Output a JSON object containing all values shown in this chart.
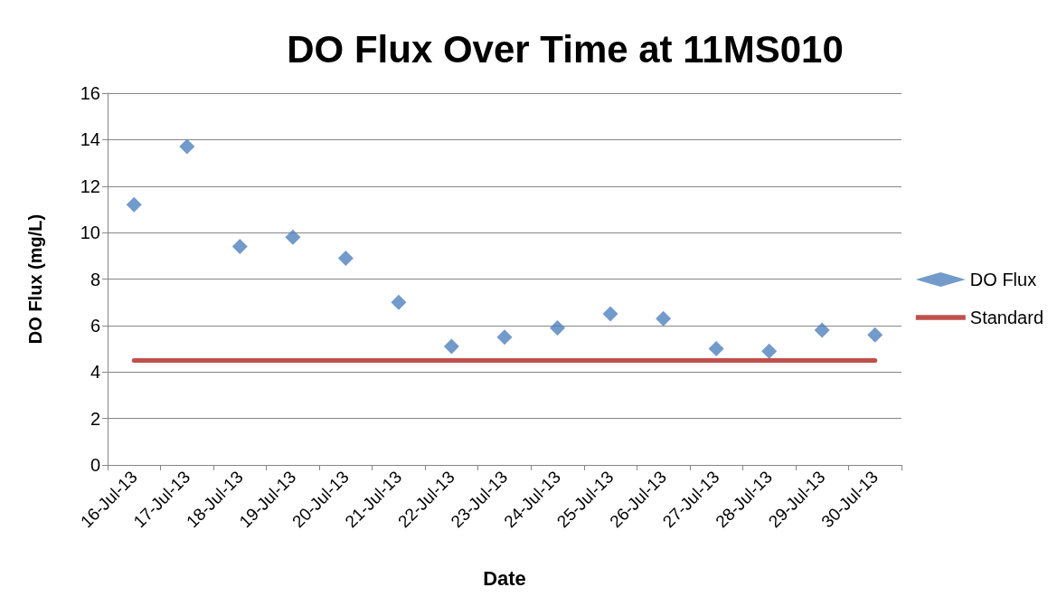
{
  "chart_data": {
    "type": "scatter",
    "title": "DO Flux Over Time at 11MS010",
    "xlabel": "Date",
    "ylabel": "DO Flux (mg/L)",
    "categories": [
      "16-Jul-13",
      "17-Jul-13",
      "18-Jul-13",
      "19-Jul-13",
      "20-Jul-13",
      "21-Jul-13",
      "22-Jul-13",
      "23-Jul-13",
      "24-Jul-13",
      "25-Jul-13",
      "26-Jul-13",
      "27-Jul-13",
      "28-Jul-13",
      "29-Jul-13",
      "30-Jul-13"
    ],
    "series": [
      {
        "name": "DO Flux",
        "color": "#4f81bd",
        "marker": "diamond",
        "values": [
          11.2,
          13.7,
          9.4,
          9.8,
          8.9,
          7.0,
          5.1,
          5.5,
          5.9,
          6.5,
          6.3,
          5.0,
          4.9,
          5.8,
          5.6
        ]
      },
      {
        "name": "Standard",
        "type": "line",
        "color": "#c0504d",
        "marker": "none",
        "values": [
          4.5,
          4.5,
          4.5,
          4.5,
          4.5,
          4.5,
          4.5,
          4.5,
          4.5,
          4.5,
          4.5,
          4.5,
          4.5,
          4.5,
          4.5
        ]
      }
    ],
    "ylim": [
      0,
      16
    ],
    "yticks": [
      0,
      2,
      4,
      6,
      8,
      10,
      12,
      14,
      16
    ],
    "grid": "y",
    "legend": "right"
  }
}
